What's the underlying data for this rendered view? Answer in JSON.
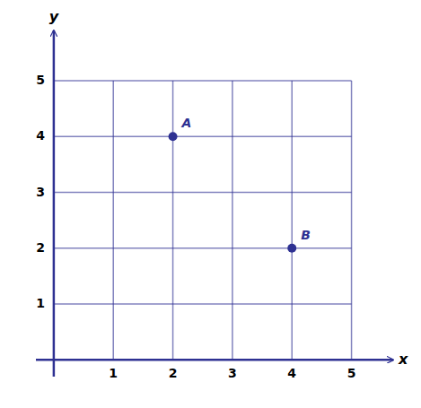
{
  "chart_data": {
    "type": "scatter",
    "x": [
      2,
      4
    ],
    "values": [
      4,
      2
    ],
    "annotations": [
      "A",
      "B"
    ],
    "color": "#2E3192",
    "xlabel": "x",
    "ylabel": "y",
    "xlim": [
      -0.3,
      5.7
    ],
    "ylim": [
      -0.3,
      5.9
    ],
    "xticks": [
      1,
      2,
      3,
      4,
      5
    ],
    "yticks": [
      1,
      2,
      3,
      4,
      5
    ],
    "grid": true,
    "marker": "circle"
  }
}
